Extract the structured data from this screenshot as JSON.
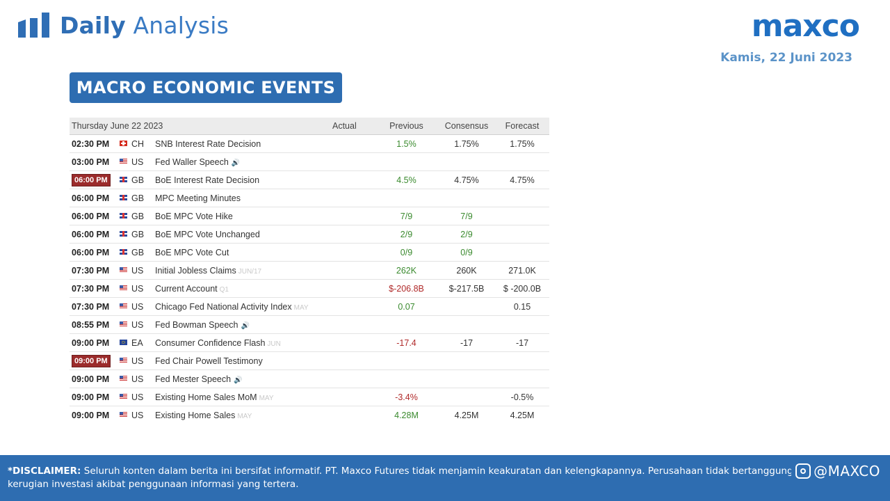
{
  "header": {
    "title_bold": "Daily",
    "title_light": "Analysis",
    "logo": "maxco",
    "date": "Kamis, 22 Juni 2023"
  },
  "section_title": "MACRO ECONOMIC EVENTS",
  "calendar": {
    "columns": [
      "Thursday June 22 2023",
      "Actual",
      "Previous",
      "Consensus",
      "Forecast"
    ],
    "rows": [
      {
        "time": "02:30 PM",
        "highlight": false,
        "flag": "ch",
        "country": "CH",
        "event": "SNB Interest Rate Decision",
        "period": "",
        "speech": false,
        "actual": "",
        "previous": "1.5%",
        "previous_tone": "pos",
        "consensus": "1.75%",
        "forecast": "1.75%"
      },
      {
        "time": "03:00 PM",
        "highlight": false,
        "flag": "us",
        "country": "US",
        "event": "Fed Waller Speech",
        "period": "",
        "speech": true,
        "actual": "",
        "previous": "",
        "previous_tone": "",
        "consensus": "",
        "forecast": ""
      },
      {
        "time": "06:00 PM",
        "highlight": true,
        "flag": "gb",
        "country": "GB",
        "event": "BoE Interest Rate Decision",
        "period": "",
        "speech": false,
        "actual": "",
        "previous": "4.5%",
        "previous_tone": "pos",
        "consensus": "4.75%",
        "forecast": "4.75%"
      },
      {
        "time": "06:00 PM",
        "highlight": false,
        "flag": "gb",
        "country": "GB",
        "event": "MPC Meeting Minutes",
        "period": "",
        "speech": false,
        "actual": "",
        "previous": "",
        "previous_tone": "",
        "consensus": "",
        "forecast": ""
      },
      {
        "time": "06:00 PM",
        "highlight": false,
        "flag": "gb",
        "country": "GB",
        "event": "BoE MPC Vote Hike",
        "period": "",
        "speech": false,
        "actual": "",
        "previous": "7/9",
        "previous_tone": "pos",
        "consensus": "7/9",
        "consensus_tone": "pos",
        "forecast": ""
      },
      {
        "time": "06:00 PM",
        "highlight": false,
        "flag": "gb",
        "country": "GB",
        "event": "BoE MPC Vote Unchanged",
        "period": "",
        "speech": false,
        "actual": "",
        "previous": "2/9",
        "previous_tone": "pos",
        "consensus": "2/9",
        "consensus_tone": "pos",
        "forecast": ""
      },
      {
        "time": "06:00 PM",
        "highlight": false,
        "flag": "gb",
        "country": "GB",
        "event": "BoE MPC Vote Cut",
        "period": "",
        "speech": false,
        "actual": "",
        "previous": "0/9",
        "previous_tone": "pos",
        "consensus": "0/9",
        "consensus_tone": "pos",
        "forecast": ""
      },
      {
        "time": "07:30 PM",
        "highlight": false,
        "flag": "us",
        "country": "US",
        "event": "Initial Jobless Claims",
        "period": "JUN/17",
        "speech": false,
        "actual": "",
        "previous": "262K",
        "previous_tone": "pos",
        "consensus": "260K",
        "forecast": "271.0K"
      },
      {
        "time": "07:30 PM",
        "highlight": false,
        "flag": "us",
        "country": "US",
        "event": "Current Account",
        "period": "Q1",
        "speech": false,
        "actual": "",
        "previous": "$-206.8B",
        "previous_tone": "neg",
        "consensus": "$-217.5B",
        "forecast": "$ -200.0B"
      },
      {
        "time": "07:30 PM",
        "highlight": false,
        "flag": "us",
        "country": "US",
        "event": "Chicago Fed National Activity Index",
        "period": "MAY",
        "speech": false,
        "actual": "",
        "previous": "0.07",
        "previous_tone": "pos",
        "consensus": "",
        "forecast": "0.15"
      },
      {
        "time": "08:55 PM",
        "highlight": false,
        "flag": "us",
        "country": "US",
        "event": "Fed Bowman Speech",
        "period": "",
        "speech": true,
        "actual": "",
        "previous": "",
        "previous_tone": "",
        "consensus": "",
        "forecast": ""
      },
      {
        "time": "09:00 PM",
        "highlight": false,
        "flag": "eu",
        "country": "EA",
        "event": "Consumer Confidence Flash",
        "period": "JUN",
        "speech": false,
        "actual": "",
        "previous": "-17.4",
        "previous_tone": "neg",
        "consensus": "-17",
        "forecast": "-17"
      },
      {
        "time": "09:00 PM",
        "highlight": true,
        "flag": "us",
        "country": "US",
        "event": "Fed Chair Powell Testimony",
        "period": "",
        "speech": false,
        "actual": "",
        "previous": "",
        "previous_tone": "",
        "consensus": "",
        "forecast": ""
      },
      {
        "time": "09:00 PM",
        "highlight": false,
        "flag": "us",
        "country": "US",
        "event": "Fed Mester Speech",
        "period": "",
        "speech": true,
        "actual": "",
        "previous": "",
        "previous_tone": "",
        "consensus": "",
        "forecast": ""
      },
      {
        "time": "09:00 PM",
        "highlight": false,
        "flag": "us",
        "country": "US",
        "event": "Existing Home Sales MoM",
        "period": "MAY",
        "speech": false,
        "actual": "",
        "previous": "-3.4%",
        "previous_tone": "neg",
        "consensus": "",
        "forecast": "-0.5%"
      },
      {
        "time": "09:00 PM",
        "highlight": false,
        "flag": "us",
        "country": "US",
        "event": "Existing Home Sales",
        "period": "MAY",
        "speech": false,
        "actual": "",
        "previous": "4.28M",
        "previous_tone": "pos",
        "consensus": "4.25M",
        "forecast": "4.25M"
      }
    ]
  },
  "footer": {
    "disclaimer_label": "*DISCLAIMER:",
    "disclaimer_text": " Seluruh konten dalam berita ini bersifat informatif. PT. Maxco Futures tidak menjamin keakuratan dan kelengkapannya. Perusahaan tidak bertanggung jawab atas",
    "disclaimer_text2": "kerugian investasi akibat penggunaan informasi yang tertera.",
    "social_handle": "@MAXCO"
  },
  "colors": {
    "brand_blue": "#2e6db1",
    "positive": "#3a8a2e",
    "negative": "#b02a2a",
    "highlight_badge": "#9b2b2b"
  }
}
